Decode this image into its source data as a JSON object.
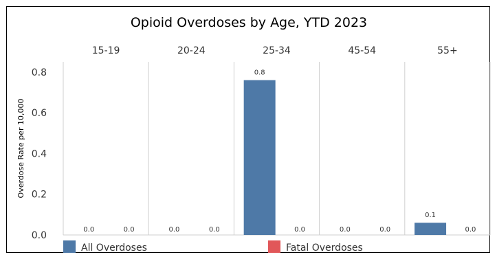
{
  "chart_data": {
    "type": "bar",
    "title": "Opioid Overdoses by Age, YTD 2023",
    "ylabel": "Overdose Rate per 10,000",
    "ylim": [
      0,
      0.85
    ],
    "yticks": [
      "0.0",
      "0.2",
      "0.4",
      "0.6",
      "0.8"
    ],
    "ytick_values": [
      0,
      0.2,
      0.4,
      0.6,
      0.8
    ],
    "categories": [
      "15-19",
      "20-24",
      "25-34",
      "45-54",
      "55+"
    ],
    "series": [
      {
        "name": "All Overdoses",
        "color": "#4e79a7",
        "values": [
          0.0,
          0.0,
          0.76,
          0.0,
          0.06
        ],
        "labels": [
          "0.0",
          "0.0",
          "0.8",
          "0.0",
          "0.1"
        ]
      },
      {
        "name": "Fatal Overdoses",
        "color": "#e15759",
        "values": [
          0.0,
          0.0,
          0.0,
          0.0,
          0.0
        ],
        "labels": [
          "0.0",
          "0.0",
          "0.0",
          "0.0",
          "0.0"
        ]
      }
    ],
    "grid": false,
    "legend": "bottom"
  }
}
